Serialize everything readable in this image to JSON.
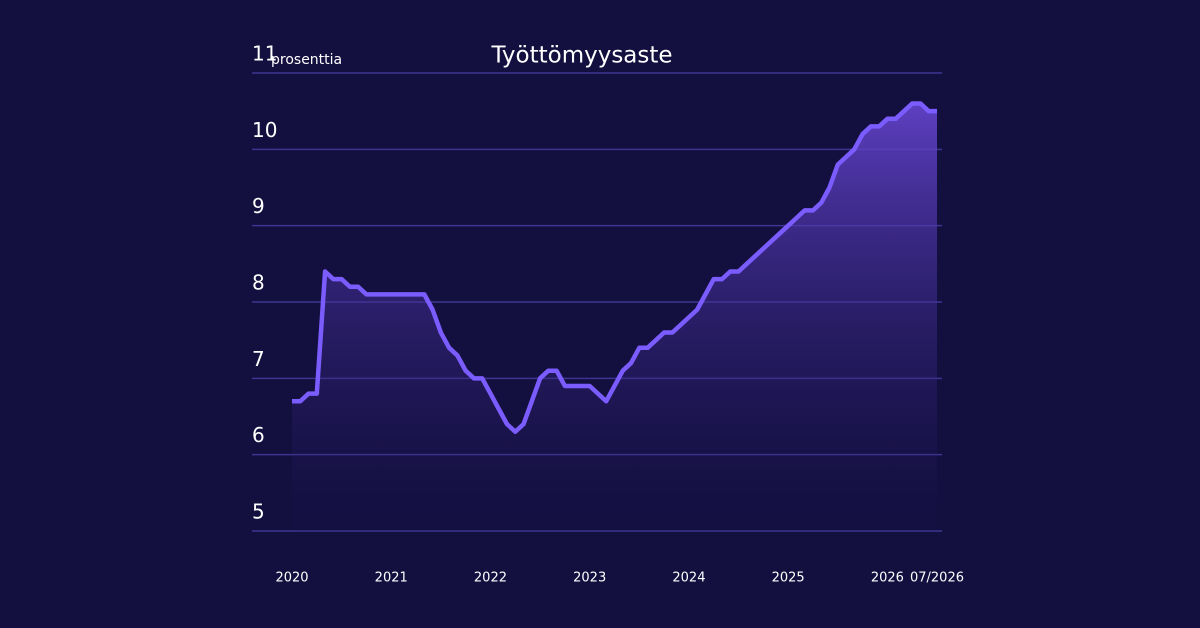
{
  "chart_data": {
    "type": "line",
    "title": "Työttömyysaste",
    "y_label": "prosenttia",
    "categories": [
      "2020",
      null,
      null,
      null,
      null,
      null,
      null,
      null,
      null,
      null,
      null,
      null,
      "2021",
      null,
      null,
      null,
      null,
      null,
      null,
      null,
      null,
      null,
      null,
      null,
      "2022",
      null,
      null,
      null,
      null,
      null,
      null,
      null,
      null,
      null,
      null,
      null,
      "2023",
      null,
      null,
      null,
      null,
      null,
      null,
      null,
      null,
      null,
      null,
      null,
      "2024",
      null,
      null,
      null,
      null,
      null,
      null,
      null,
      null,
      null,
      null,
      null,
      "2025",
      null,
      null,
      null,
      null,
      null,
      null,
      null,
      null,
      null,
      null,
      null,
      "2026",
      null,
      null,
      null,
      null,
      null,
      "07/2026"
    ],
    "series": [
      {
        "name": "Työttömyysaste",
        "color": "#7b5cff",
        "values": [
          6.7,
          6.7,
          6.8,
          6.8,
          8.4,
          8.3,
          8.3,
          8.2,
          8.2,
          8.1,
          8.1,
          8.1,
          8.1,
          8.1,
          8.1,
          8.1,
          8.1,
          7.9,
          7.6,
          7.4,
          7.3,
          7.1,
          7.0,
          7.0,
          6.8,
          6.6,
          6.4,
          6.3,
          6.4,
          6.7,
          7.0,
          7.1,
          7.1,
          6.9,
          6.9,
          6.9,
          6.9,
          6.8,
          6.7,
          6.9,
          7.1,
          7.2,
          7.4,
          7.4,
          7.5,
          7.6,
          7.6,
          7.7,
          7.8,
          7.9,
          8.1,
          8.3,
          8.3,
          8.4,
          8.4,
          8.5,
          8.6,
          8.7,
          8.8,
          8.9,
          9.0,
          9.1,
          9.2,
          9.2,
          9.3,
          9.5,
          9.8,
          9.9,
          10.0,
          10.2,
          10.3,
          10.3,
          10.4,
          10.4,
          10.5,
          10.6,
          10.6,
          10.5,
          10.5
        ]
      }
    ],
    "ylim": [
      5,
      11
    ],
    "yticks": [
      5,
      6,
      7,
      8,
      9,
      10,
      11
    ],
    "grid": true
  }
}
